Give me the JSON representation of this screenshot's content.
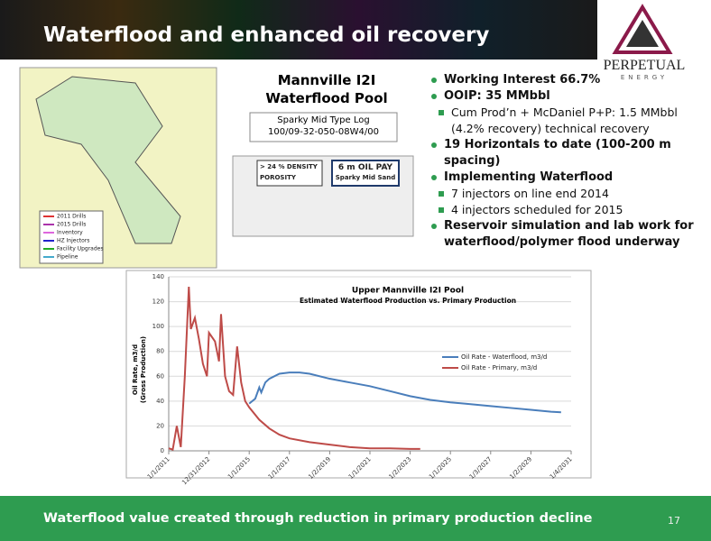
{
  "header": {
    "title": "Waterflood and enhanced oil recovery",
    "logo": [
      "PERPETUAL",
      "ENERGY"
    ]
  },
  "map": {
    "legend": [
      "2011 Drills",
      "2015 Drills",
      "Inventory",
      "HZ Injectors",
      "Facility Upgrades",
      "Pipeline"
    ]
  },
  "pool": {
    "title": [
      "Mannville I2I",
      "Waterflood Pool"
    ],
    "type_log": [
      "Sparky Mid Type Log",
      "100/09-32-050-08W4/00"
    ],
    "log_labels": [
      [
        "> 24 % DENSITY",
        "POROSITY"
      ],
      [
        "6 m  OIL PAY",
        "Sparky Mid Sand"
      ]
    ]
  },
  "bullets": [
    {
      "level": 1,
      "text": "Working Interest  66.7%"
    },
    {
      "level": 1,
      "text": "OOIP: 35 MMbbl"
    },
    {
      "level": 2,
      "text": "Cum Prod’n + McDaniel P+P: 1.5 MMbbl (4.2% recovery) technical recovery"
    },
    {
      "level": 1,
      "text": "19 Horizontals to date (100-200 m spacing)"
    },
    {
      "level": 1,
      "text": "Implementing Waterflood"
    },
    {
      "level": 2,
      "text": "7 injectors on line end 2014"
    },
    {
      "level": 2,
      "text": "4 injectors scheduled for 2015"
    },
    {
      "level": 1,
      "text": "Reservoir simulation and lab work for waterflood/polymer flood underway"
    }
  ],
  "chart_data": {
    "type": "line",
    "title": "Upper Mannville I2I Pool",
    "subtitle": "Estimated Waterflood Production vs. Primary Production",
    "y_label": [
      "Oil Rate, m3/d",
      "(Gross Production)"
    ],
    "xlim": [
      2011,
      2031
    ],
    "xticks": [
      {
        "value": 2011,
        "label": "1/1/2011"
      },
      {
        "value": 2013,
        "label": "12/31/2012"
      },
      {
        "value": 2015,
        "label": "1/1/2015"
      },
      {
        "value": 2017,
        "label": "1/1/2017"
      },
      {
        "value": 2019,
        "label": "1/2/2019"
      },
      {
        "value": 2021,
        "label": "1/1/2021"
      },
      {
        "value": 2023,
        "label": "1/2/2023"
      },
      {
        "value": 2025,
        "label": "1/1/2025"
      },
      {
        "value": 2027,
        "label": "1/3/2027"
      },
      {
        "value": 2029,
        "label": "1/2/2029"
      },
      {
        "value": 2031,
        "label": "1/4/2031"
      }
    ],
    "ylim": [
      0,
      140
    ],
    "yticks": [
      0,
      20,
      40,
      60,
      80,
      100,
      120,
      140
    ],
    "grid": true,
    "series": [
      {
        "name": "Oil Rate - Waterflood, m3/d",
        "color": "#4a7ebb",
        "x": [
          2015,
          2015.3,
          2015.5,
          2015.6,
          2015.8,
          2016,
          2016.5,
          2017,
          2017.5,
          2018,
          2019,
          2020,
          2021,
          2022,
          2023,
          2024,
          2025,
          2026,
          2027,
          2028,
          2029,
          2030,
          2030.5
        ],
        "values": [
          38,
          42,
          51,
          47,
          55,
          58,
          62,
          63,
          63,
          62,
          58,
          55,
          52,
          48,
          44,
          41,
          39,
          37.5,
          36,
          34.5,
          33,
          31.5,
          31
        ]
      },
      {
        "name": "Oil Rate - Primary, m3/d",
        "color": "#be4b48",
        "x": [
          2011,
          2011.2,
          2011.4,
          2011.6,
          2011.8,
          2012,
          2012.1,
          2012.3,
          2012.5,
          2012.7,
          2012.9,
          2013,
          2013.3,
          2013.5,
          2013.6,
          2013.8,
          2014,
          2014.2,
          2014.4,
          2014.6,
          2014.8,
          2015,
          2015.5,
          2016,
          2016.5,
          2017,
          2018,
          2019,
          2020,
          2021,
          2022,
          2023,
          2023.5
        ],
        "values": [
          2,
          1,
          20,
          3,
          60,
          132,
          98,
          107,
          90,
          70,
          60,
          95,
          88,
          72,
          110,
          60,
          48,
          45,
          84,
          55,
          40,
          35,
          25,
          18,
          13,
          10,
          7,
          5,
          3,
          2,
          2,
          1.5,
          1.5
        ]
      }
    ],
    "legend": "right"
  },
  "footer": {
    "text": "Waterflood value created through reduction in primary production decline",
    "page": "17"
  }
}
